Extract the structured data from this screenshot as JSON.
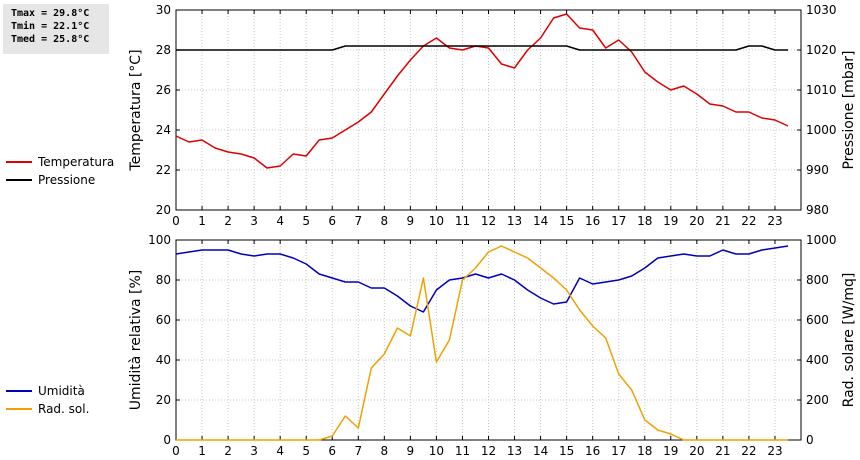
{
  "stats": {
    "tmax": "Tmax = 29.8°C",
    "tmin": "Tmin = 22.1°C",
    "tmed": "Tmed = 25.8°C"
  },
  "legend_top": [
    {
      "label": "Temperatura",
      "color": "#dd0000"
    },
    {
      "label": "Pressione",
      "color": "#000000"
    }
  ],
  "legend_bottom": [
    {
      "label": "Umidità",
      "color": "#0000bb"
    },
    {
      "label": "Rad. sol.",
      "color": "#f0a000"
    }
  ],
  "chart_data": [
    {
      "type": "line",
      "ylabel": "Temperatura [°C]",
      "y2label": "Pressione [mbar]",
      "xlim": [
        0,
        24
      ],
      "ylim": [
        20,
        30
      ],
      "y2lim": [
        980,
        1030
      ],
      "xticks": [
        0,
        1,
        2,
        3,
        4,
        5,
        6,
        7,
        8,
        9,
        10,
        11,
        12,
        13,
        14,
        15,
        16,
        17,
        18,
        19,
        20,
        21,
        22,
        23
      ],
      "yticks": [
        20,
        22,
        24,
        26,
        28,
        30
      ],
      "y2ticks": [
        980,
        990,
        1000,
        1010,
        1020,
        1030
      ],
      "grid": true,
      "series": [
        {
          "name": "Temperatura",
          "color": "#dd0000",
          "axis": "left",
          "x": [
            0,
            0.5,
            1,
            1.5,
            2,
            2.5,
            3,
            3.5,
            4,
            4.5,
            5,
            5.5,
            6,
            6.5,
            7,
            7.5,
            8,
            8.5,
            9,
            9.5,
            10,
            10.5,
            11,
            11.5,
            12,
            12.5,
            13,
            13.5,
            14,
            14.5,
            15,
            15.5,
            16,
            16.5,
            17,
            17.5,
            18,
            18.5,
            19,
            19.5,
            20,
            20.5,
            21,
            21.5,
            22,
            22.5,
            23,
            23.5
          ],
          "y": [
            23.7,
            23.4,
            23.5,
            23.1,
            22.9,
            22.8,
            22.6,
            22.1,
            22.2,
            22.8,
            22.7,
            23.5,
            23.6,
            24.0,
            24.4,
            24.9,
            25.8,
            26.7,
            27.5,
            28.2,
            28.6,
            28.1,
            28.0,
            28.2,
            28.1,
            27.3,
            27.1,
            28.0,
            28.6,
            29.6,
            29.8,
            29.1,
            29.0,
            28.1,
            28.5,
            27.9,
            26.9,
            26.4,
            26.0,
            26.2,
            25.8,
            25.3,
            25.2,
            24.9,
            24.9,
            24.6,
            24.5,
            24.2
          ]
        },
        {
          "name": "Pressione",
          "color": "#000000",
          "axis": "right",
          "x": [
            0,
            6,
            6.5,
            15,
            15.5,
            21.5,
            22,
            22.5,
            23,
            23.5
          ],
          "y": [
            1020,
            1020,
            1021,
            1021,
            1020,
            1020,
            1021,
            1021,
            1020,
            1020
          ]
        }
      ]
    },
    {
      "type": "line",
      "ylabel": "Umidità relativa [%]",
      "y2label": "Rad. solare [W/mq]",
      "xlim": [
        0,
        24
      ],
      "ylim": [
        0,
        100
      ],
      "y2lim": [
        0,
        1000
      ],
      "xticks": [
        0,
        1,
        2,
        3,
        4,
        5,
        6,
        7,
        8,
        9,
        10,
        11,
        12,
        13,
        14,
        15,
        16,
        17,
        18,
        19,
        20,
        21,
        22,
        23
      ],
      "yticks": [
        0,
        20,
        40,
        60,
        80,
        100
      ],
      "y2ticks": [
        0,
        200,
        400,
        600,
        800,
        1000
      ],
      "grid": true,
      "series": [
        {
          "name": "Umidità",
          "color": "#0000bb",
          "axis": "left",
          "x": [
            0,
            0.5,
            1,
            1.5,
            2,
            2.5,
            3,
            3.5,
            4,
            4.5,
            5,
            5.5,
            6,
            6.5,
            7,
            7.5,
            8,
            8.5,
            9,
            9.5,
            10,
            10.5,
            11,
            11.5,
            12,
            12.5,
            13,
            13.5,
            14,
            14.5,
            15,
            15.5,
            16,
            16.5,
            17,
            17.5,
            18,
            18.5,
            19,
            19.5,
            20,
            20.5,
            21,
            21.5,
            22,
            22.5,
            23,
            23.5
          ],
          "y": [
            93,
            94,
            95,
            95,
            95,
            93,
            92,
            93,
            93,
            91,
            88,
            83,
            81,
            79,
            79,
            76,
            76,
            72,
            67,
            64,
            75,
            80,
            81,
            83,
            81,
            83,
            80,
            75,
            71,
            68,
            69,
            81,
            78,
            79,
            80,
            82,
            86,
            91,
            92,
            93,
            92,
            92,
            95,
            93,
            93,
            95,
            96,
            97
          ]
        },
        {
          "name": "Rad. sol.",
          "color": "#f0a000",
          "axis": "right",
          "x": [
            0,
            0.5,
            1,
            1.5,
            2,
            2.5,
            3,
            3.5,
            4,
            4.5,
            5,
            5.5,
            6,
            6.5,
            7,
            7.5,
            8,
            8.5,
            9,
            9.5,
            10,
            10.5,
            11,
            11.5,
            12,
            12.5,
            13,
            13.5,
            14,
            14.5,
            15,
            15.5,
            16,
            16.5,
            17,
            17.5,
            18,
            18.5,
            19,
            19.5,
            20,
            20.5,
            21,
            21.5,
            22,
            22.5,
            23,
            23.5
          ],
          "y": [
            0,
            0,
            0,
            0,
            0,
            0,
            0,
            0,
            0,
            0,
            0,
            0,
            20,
            120,
            60,
            360,
            430,
            560,
            520,
            810,
            390,
            500,
            800,
            860,
            940,
            970,
            940,
            910,
            860,
            810,
            750,
            650,
            570,
            510,
            330,
            250,
            100,
            50,
            30,
            0,
            0,
            0,
            0,
            0,
            0,
            0,
            0,
            0
          ]
        }
      ]
    }
  ]
}
